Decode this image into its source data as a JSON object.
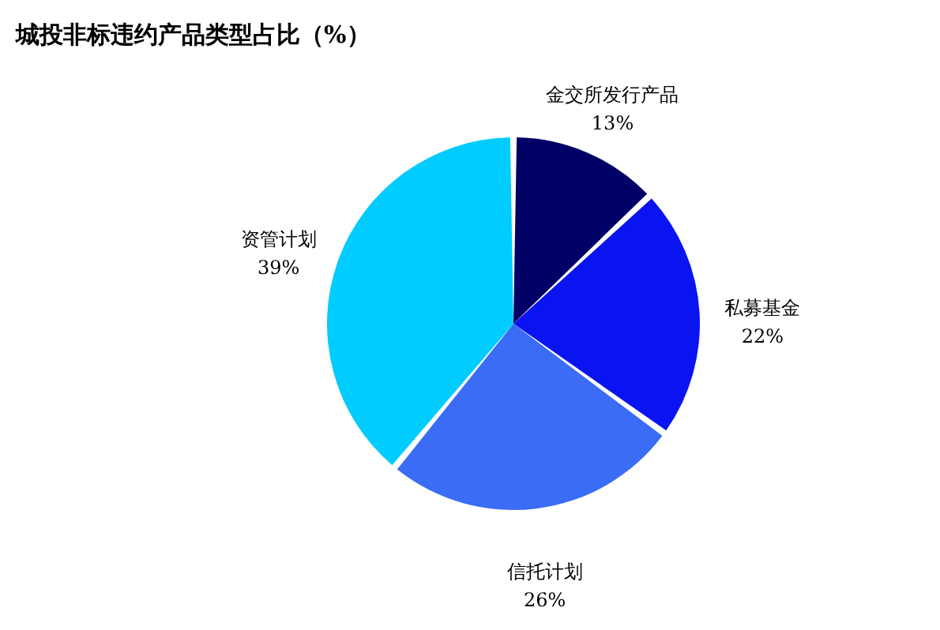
{
  "chart_data": {
    "type": "pie",
    "title": "城投非标违约产品类型占比（%）",
    "categories": [
      "金交所发行产品",
      "私募基金",
      "信托计划",
      "资管计划"
    ],
    "values": [
      13,
      22,
      26,
      39
    ],
    "colors": [
      "#000066",
      "#0a14f0",
      "#3a6cf5",
      "#00ccff"
    ],
    "value_labels": [
      "13%",
      "22%",
      "26%",
      "39%"
    ]
  }
}
